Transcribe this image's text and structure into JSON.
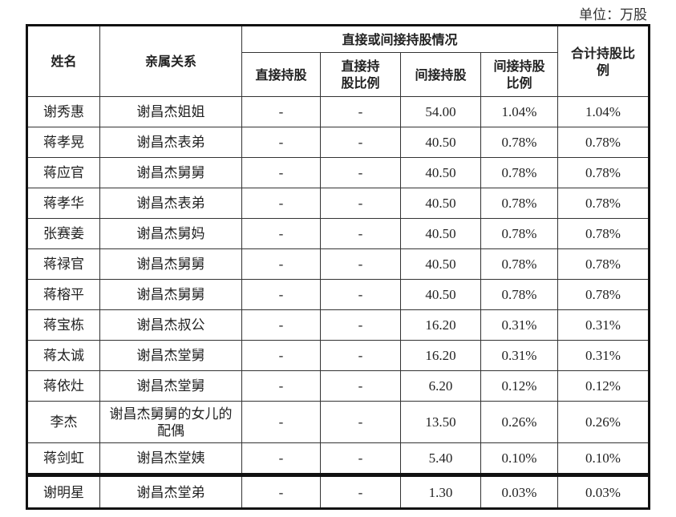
{
  "unit_label": "单位：万股",
  "headers": {
    "name": "姓名",
    "relation": "亲属关系",
    "group": "直接或间接持股情况",
    "direct": "直接持股",
    "direct_ratio": "直接持股比例",
    "indirect": "间接持股",
    "indirect_ratio": "间接持股比例",
    "total_ratio": "合计持股比例"
  },
  "rows": [
    {
      "name": "谢秀惠",
      "relation": "谢昌杰姐姐",
      "direct": "-",
      "direct_ratio": "-",
      "indirect": "54.00",
      "indirect_ratio": "1.04%",
      "total_ratio": "1.04%"
    },
    {
      "name": "蒋孝晃",
      "relation": "谢昌杰表弟",
      "direct": "-",
      "direct_ratio": "-",
      "indirect": "40.50",
      "indirect_ratio": "0.78%",
      "total_ratio": "0.78%"
    },
    {
      "name": "蒋应官",
      "relation": "谢昌杰舅舅",
      "direct": "-",
      "direct_ratio": "-",
      "indirect": "40.50",
      "indirect_ratio": "0.78%",
      "total_ratio": "0.78%"
    },
    {
      "name": "蒋孝华",
      "relation": "谢昌杰表弟",
      "direct": "-",
      "direct_ratio": "-",
      "indirect": "40.50",
      "indirect_ratio": "0.78%",
      "total_ratio": "0.78%"
    },
    {
      "name": "张赛姜",
      "relation": "谢昌杰舅妈",
      "direct": "-",
      "direct_ratio": "-",
      "indirect": "40.50",
      "indirect_ratio": "0.78%",
      "total_ratio": "0.78%"
    },
    {
      "name": "蒋禄官",
      "relation": "谢昌杰舅舅",
      "direct": "-",
      "direct_ratio": "-",
      "indirect": "40.50",
      "indirect_ratio": "0.78%",
      "total_ratio": "0.78%"
    },
    {
      "name": "蒋榕平",
      "relation": "谢昌杰舅舅",
      "direct": "-",
      "direct_ratio": "-",
      "indirect": "40.50",
      "indirect_ratio": "0.78%",
      "total_ratio": "0.78%"
    },
    {
      "name": "蒋宝栋",
      "relation": "谢昌杰叔公",
      "direct": "-",
      "direct_ratio": "-",
      "indirect": "16.20",
      "indirect_ratio": "0.31%",
      "total_ratio": "0.31%"
    },
    {
      "name": "蒋太诚",
      "relation": "谢昌杰堂舅",
      "direct": "-",
      "direct_ratio": "-",
      "indirect": "16.20",
      "indirect_ratio": "0.31%",
      "total_ratio": "0.31%"
    },
    {
      "name": "蒋依灶",
      "relation": "谢昌杰堂舅",
      "direct": "-",
      "direct_ratio": "-",
      "indirect": "6.20",
      "indirect_ratio": "0.12%",
      "total_ratio": "0.12%"
    },
    {
      "name": "李杰",
      "relation": "谢昌杰舅舅的女儿的配偶",
      "direct": "-",
      "direct_ratio": "-",
      "indirect": "13.50",
      "indirect_ratio": "0.26%",
      "total_ratio": "0.26%"
    },
    {
      "name": "蒋剑虹",
      "relation": "谢昌杰堂姨",
      "direct": "-",
      "direct_ratio": "-",
      "indirect": "5.40",
      "indirect_ratio": "0.10%",
      "total_ratio": "0.10%"
    }
  ],
  "rows_continued": [
    {
      "name": "谢明星",
      "relation": "谢昌杰堂弟",
      "direct": "-",
      "direct_ratio": "-",
      "indirect": "1.30",
      "indirect_ratio": "0.03%",
      "total_ratio": "0.03%"
    }
  ]
}
